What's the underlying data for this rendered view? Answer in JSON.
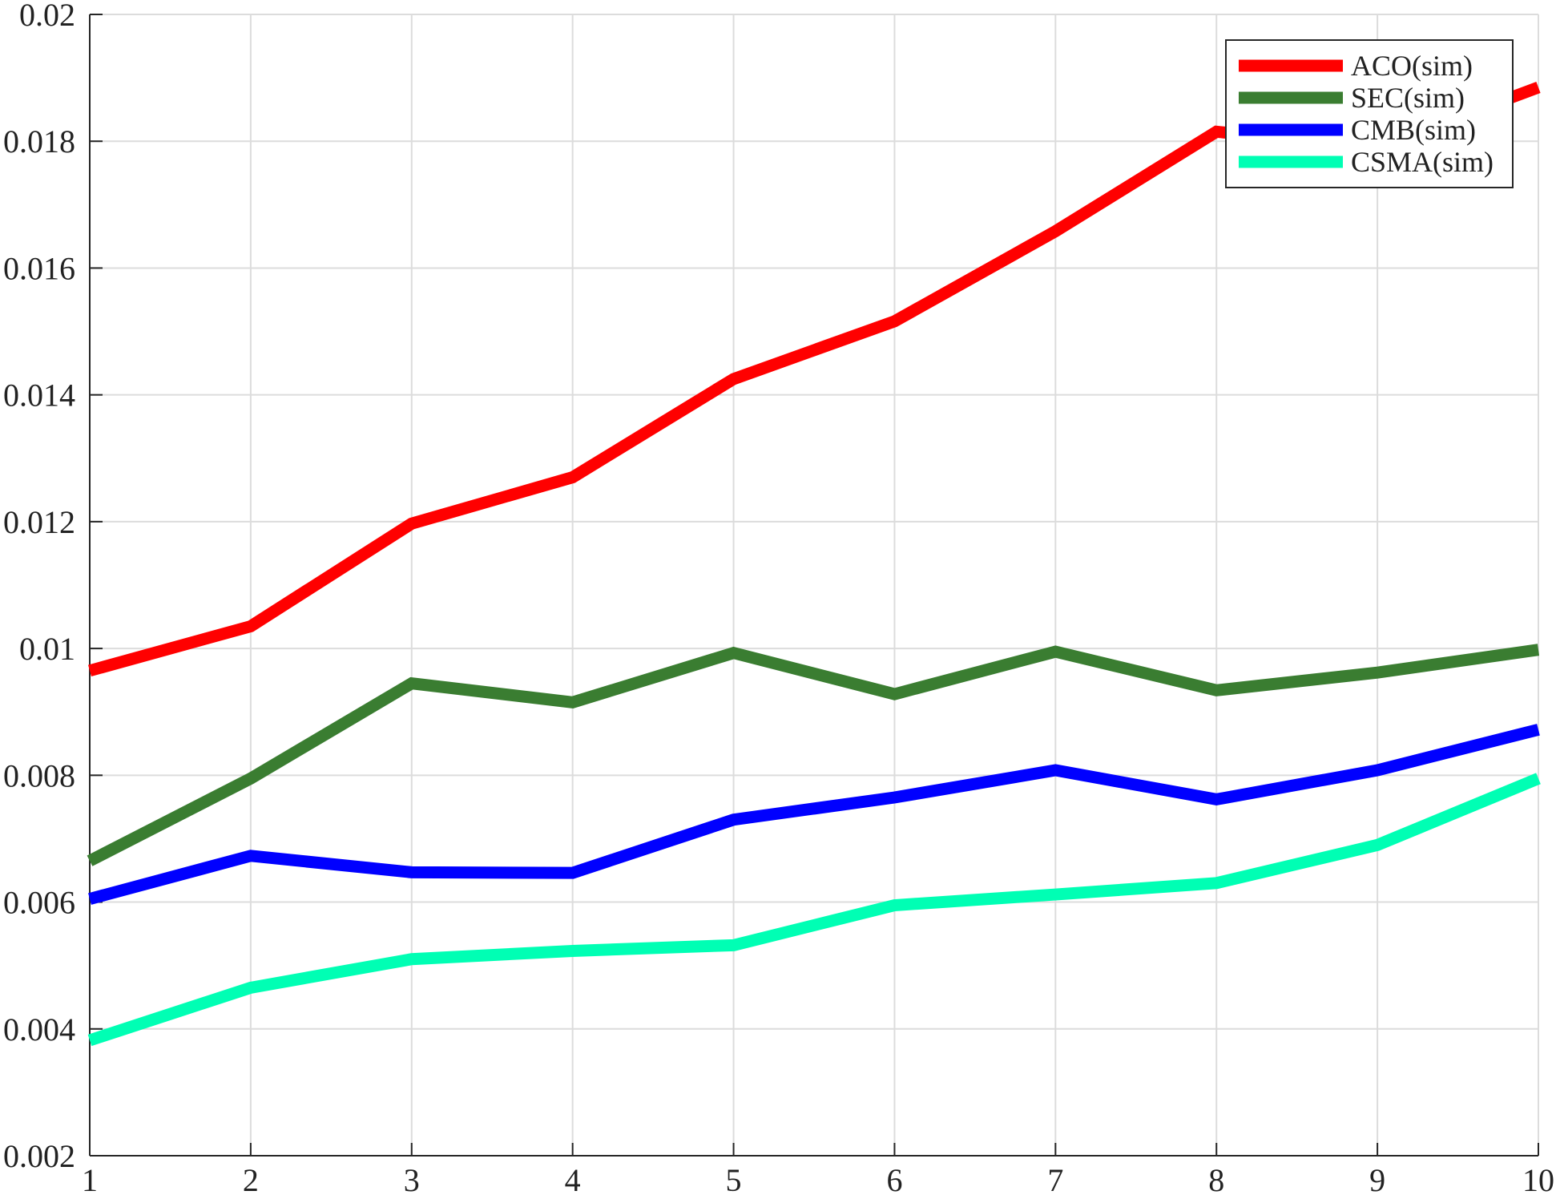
{
  "chart_data": {
    "type": "line",
    "title": "",
    "xlabel": "",
    "ylabel": "",
    "x": [
      1,
      2,
      3,
      4,
      5,
      6,
      7,
      8,
      9,
      10
    ],
    "xlim": [
      1,
      10
    ],
    "ylim": [
      0.002,
      0.02
    ],
    "x_ticks": [
      "1",
      "2",
      "3",
      "4",
      "5",
      "6",
      "7",
      "8",
      "9",
      "10"
    ],
    "y_ticks": [
      "0.002",
      "0.004",
      "0.006",
      "0.008",
      "0.01",
      "0.012",
      "0.014",
      "0.016",
      "0.018",
      "0.02"
    ],
    "grid": true,
    "legend_position": "top-right",
    "series": [
      {
        "name": "ACO(sim)",
        "color": "#ff0000",
        "values": [
          0.00965,
          0.01035,
          0.01197,
          0.0127,
          0.01425,
          0.01516,
          0.01658,
          0.01815,
          0.0179,
          0.01885
        ]
      },
      {
        "name": "SEC(sim)",
        "color": "#3a7d31",
        "values": [
          0.00665,
          0.00795,
          0.00945,
          0.00915,
          0.00993,
          0.00928,
          0.00995,
          0.00934,
          0.00962,
          0.00998
        ]
      },
      {
        "name": "CMB(sim)",
        "color": "#0000ff",
        "values": [
          0.00605,
          0.00673,
          0.00647,
          0.00646,
          0.0073,
          0.00765,
          0.00808,
          0.00762,
          0.00808,
          0.00872
        ]
      },
      {
        "name": "CSMA(sim)",
        "color": "#00ffb4",
        "values": [
          0.00382,
          0.00465,
          0.0051,
          0.00523,
          0.00532,
          0.00595,
          0.00612,
          0.0063,
          0.0069,
          0.00795
        ]
      }
    ]
  }
}
